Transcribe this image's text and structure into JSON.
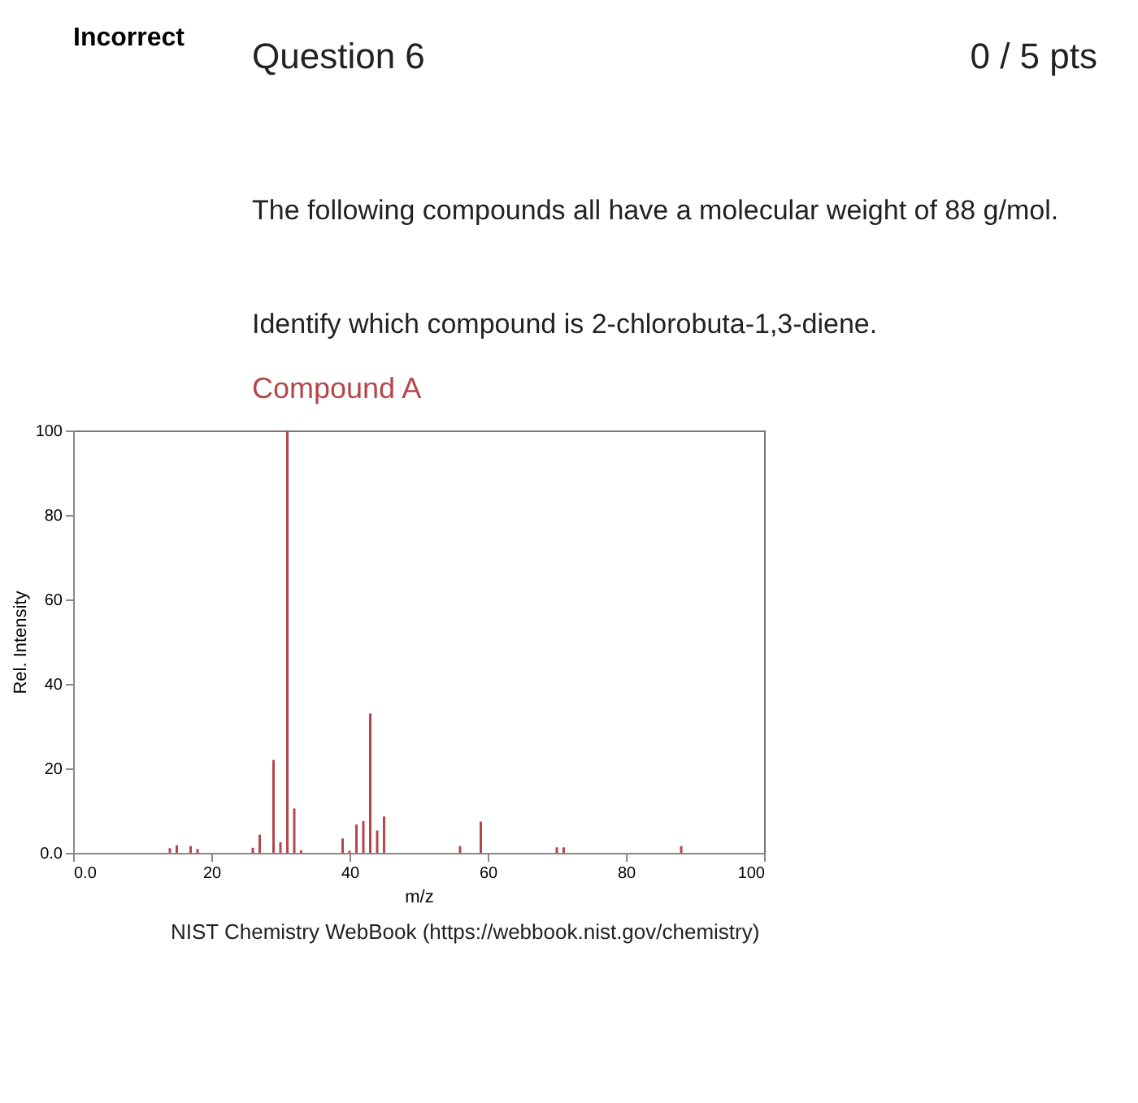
{
  "chart_data": {
    "type": "bar",
    "title": "Compound A",
    "annotations": [
      "Incorrect",
      "Question 6",
      "0 / 5 pts",
      "The following compounds all have a molecular weight of 88 g/mol.",
      "Identify which compound is 2-chlorobuta-1,3-diene.",
      "NIST Chemistry WebBook (https://webbook.nist.gov/chemistry)"
    ],
    "xlabel": "m/z",
    "ylabel": "Rel. Intensity",
    "x": [
      14,
      15,
      17,
      18,
      26,
      27,
      29,
      30,
      31,
      32,
      33,
      39,
      40,
      41,
      42,
      43,
      44,
      45,
      56,
      59,
      70,
      71,
      88
    ],
    "values": [
      1.1,
      1.8,
      1.6,
      0.9,
      1.2,
      4.3,
      22,
      2.5,
      100,
      10.5,
      0.6,
      3.4,
      0.5,
      6.7,
      7.5,
      33,
      5.3,
      8.6,
      1.6,
      7.4,
      1.3,
      1.3,
      1.6
    ],
    "color": "#b5464b",
    "xlim": [
      0,
      100
    ],
    "xticks": [
      {
        "value": 0,
        "label": "0.0"
      },
      20,
      40,
      60,
      80,
      100
    ],
    "ylim": [
      0,
      100
    ],
    "yticks": [
      {
        "value": 0,
        "label": "0.0"
      },
      20,
      40,
      60,
      80,
      100
    ]
  }
}
